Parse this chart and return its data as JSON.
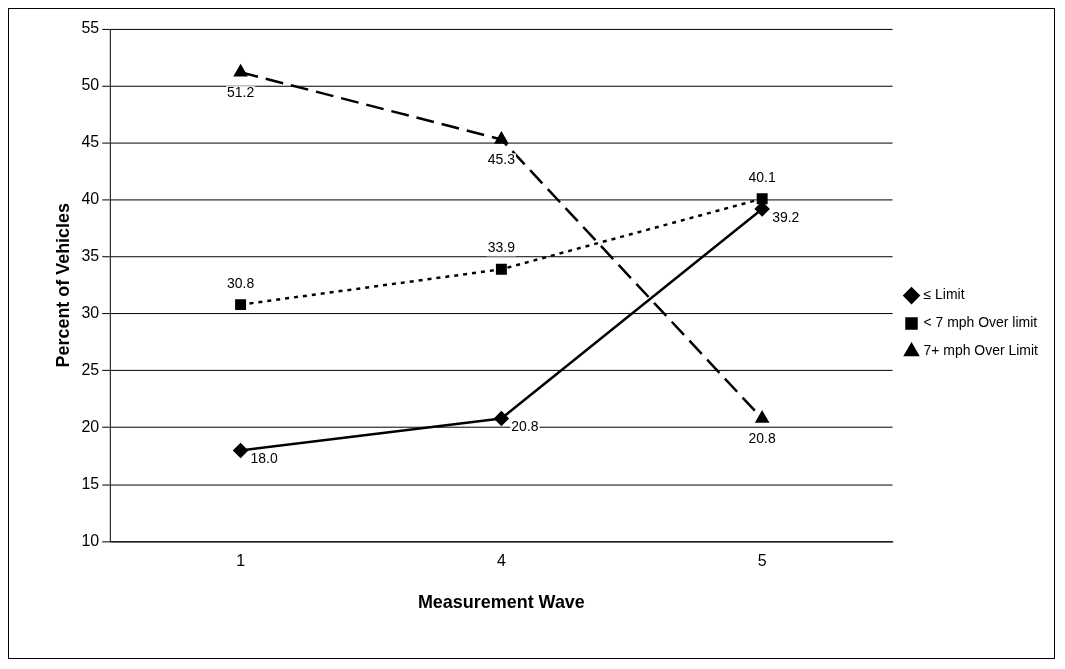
{
  "chart_data": {
    "type": "line",
    "xlabel": "Measurement Wave",
    "ylabel": "Percent of Vehicles",
    "categories": [
      "1",
      "4",
      "5"
    ],
    "series": [
      {
        "name": "≤ Limit",
        "color": "#000000",
        "values": [
          18.0,
          20.8,
          39.2
        ],
        "value_labels": [
          "18.0",
          "20.8",
          "39.2"
        ],
        "marker": "diamond",
        "line_style": "solid"
      },
      {
        "name": "< 7 mph Over limit",
        "color": "#000000",
        "values": [
          30.8,
          33.9,
          40.1
        ],
        "value_labels": [
          "30.8",
          "33.9",
          "40.1"
        ],
        "marker": "square",
        "line_style": "dotted"
      },
      {
        "name": "7+ mph Over Limit",
        "color": "#000000",
        "values": [
          51.2,
          45.3,
          20.8
        ],
        "value_labels": [
          "51.2",
          "45.3",
          "20.8"
        ],
        "marker": "triangle",
        "line_style": "dashed"
      }
    ],
    "ylim": [
      10,
      55
    ],
    "yticks": [
      10,
      15,
      20,
      25,
      30,
      35,
      40,
      45,
      50,
      55
    ],
    "grid": "y",
    "legend": "right"
  }
}
